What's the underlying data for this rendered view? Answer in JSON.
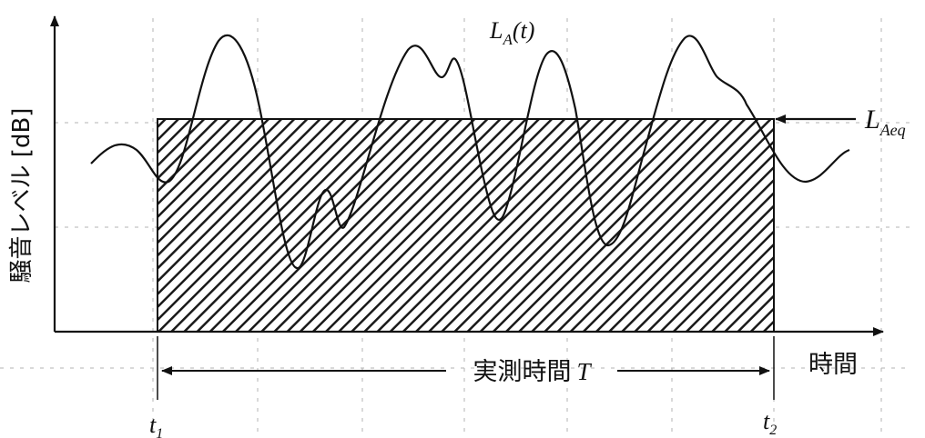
{
  "diagram": {
    "y_axis_label": "騒音レベル [dB]",
    "x_axis_label": "時間",
    "curve_label": {
      "main": "L",
      "sub": "A",
      "suffix": "(t)"
    },
    "equivalent_level_label": {
      "main": "L",
      "sub": "Aeq"
    },
    "measurement_label": {
      "text": "実測時間",
      "symbol": "T"
    },
    "t_start": {
      "main": "t",
      "sub": "1"
    },
    "t_end": {
      "main": "t",
      "sub": "2"
    },
    "colors": {
      "line": "#111111",
      "hatch": "#1a1a1a",
      "grid": "#9a9a9a"
    }
  }
}
